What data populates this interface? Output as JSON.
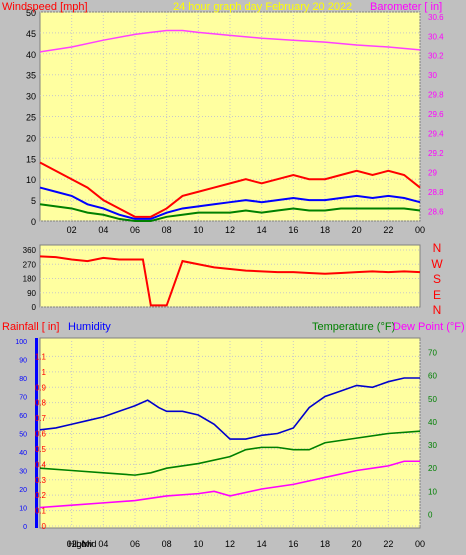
{
  "chart_data": [
    {
      "type": "line",
      "title": "24 hour graph day   February 20 2022",
      "left_axis_label": "Windspeed [mph]",
      "right_axis_label": "Barometer [ in]",
      "x_tick_labels": [
        "02",
        "04",
        "06",
        "08",
        "10",
        "12",
        "14",
        "16",
        "18",
        "20",
        "22",
        "00"
      ],
      "x_range": [
        0,
        24
      ],
      "left_ylim": [
        0,
        50
      ],
      "left_ticks": [
        0,
        5,
        10,
        15,
        20,
        25,
        30,
        35,
        40,
        45,
        50
      ],
      "right_ylim": [
        28.5,
        30.65
      ],
      "right_ticks": [
        28.6,
        28.8,
        29.0,
        29.2,
        29.4,
        29.6,
        29.8,
        30.0,
        30.2,
        30.4,
        30.6
      ],
      "grid": true,
      "series": [
        {
          "axis": "right",
          "color": "#ff40ff",
          "x": [
            0,
            2,
            4,
            6,
            7,
            8,
            9,
            10,
            12,
            14,
            16,
            18,
            20,
            22,
            24
          ],
          "y": [
            30.24,
            30.29,
            30.36,
            30.42,
            30.44,
            30.46,
            30.46,
            30.44,
            30.41,
            30.38,
            30.36,
            30.34,
            30.31,
            30.29,
            30.26
          ]
        },
        {
          "axis": "left",
          "color": "#ff0000",
          "x": [
            0,
            1,
            2,
            3,
            4,
            5,
            6,
            7,
            8,
            9,
            10,
            11,
            12,
            13,
            14,
            15,
            16,
            17,
            18,
            19,
            20,
            21,
            22,
            23,
            24
          ],
          "y": [
            14,
            12,
            10,
            8,
            5,
            3,
            1,
            1,
            3,
            6,
            7,
            8,
            9,
            10,
            9,
            10,
            11,
            10,
            10,
            11,
            12,
            11,
            12,
            11,
            8
          ]
        },
        {
          "axis": "left",
          "color": "#0000ff",
          "x": [
            0,
            1,
            2,
            3,
            4,
            5,
            6,
            7,
            8,
            9,
            10,
            11,
            12,
            13,
            14,
            15,
            16,
            17,
            18,
            19,
            20,
            21,
            22,
            23,
            24
          ],
          "y": [
            8,
            7,
            6,
            4,
            3,
            1.5,
            0.5,
            0.5,
            2,
            3,
            3.5,
            4,
            4.5,
            5,
            4.5,
            5,
            5.5,
            5,
            5,
            5.5,
            6,
            5.5,
            6,
            5.5,
            4.5
          ]
        },
        {
          "axis": "left",
          "color": "#008000",
          "x": [
            0,
            1,
            2,
            3,
            4,
            5,
            6,
            7,
            8,
            9,
            10,
            11,
            12,
            13,
            14,
            15,
            16,
            17,
            18,
            19,
            20,
            21,
            22,
            23,
            24
          ],
          "y": [
            4,
            3.5,
            3,
            2,
            1.5,
            0.5,
            0,
            0,
            1,
            1.5,
            2,
            2,
            2,
            2.5,
            2,
            2.5,
            3,
            2.5,
            2.5,
            3,
            3,
            3,
            3,
            3,
            2.5
          ]
        }
      ]
    },
    {
      "type": "scatter",
      "left_ticks": [
        0,
        90,
        180,
        270,
        360
      ],
      "left_ylim": [
        0,
        360
      ],
      "compass_labels": [
        "N",
        "W",
        "S",
        "E",
        "N"
      ],
      "x_range": [
        0,
        24
      ],
      "grid": true,
      "series": [
        {
          "color": "#ff0000",
          "x": [
            0,
            1,
            2,
            3,
            4,
            5,
            6,
            6.5,
            7,
            8,
            9,
            10,
            11,
            12,
            13,
            14,
            15,
            16,
            17,
            18,
            19,
            20,
            21,
            22,
            23,
            24
          ],
          "y": [
            320,
            315,
            300,
            290,
            310,
            300,
            300,
            300,
            10,
            10,
            290,
            270,
            250,
            240,
            230,
            225,
            220,
            220,
            215,
            210,
            215,
            220,
            225,
            220,
            225,
            220
          ]
        }
      ]
    },
    {
      "type": "line",
      "left_axis_label_1": "Rainfall [ in]",
      "left_axis_label_2": "Humidity",
      "right_axis_label_1": "Temperature (°F)",
      "right_axis_label_2": "Dew Point (°F)",
      "humidity_ticks": [
        0,
        10,
        20,
        30,
        40,
        50,
        60,
        70,
        80,
        90,
        100
      ],
      "rain_ticks": [
        "0",
        "0.1",
        "0.2",
        "0.3",
        "0.4",
        "0.5",
        "0.6",
        "0.7",
        "0.8",
        "0.9",
        "1",
        "1.1"
      ],
      "rain_ylim": [
        0,
        1.2
      ],
      "temp_ticks": [
        0,
        10,
        20,
        30,
        40,
        50,
        60,
        70
      ],
      "temp_ylim": [
        -5,
        75
      ],
      "x_tick_labels": [
        "02",
        "04",
        "06",
        "08",
        "10",
        "12",
        "14",
        "16",
        "18",
        "20",
        "22",
        "00"
      ],
      "bottom_labels": [
        "High",
        "Low",
        "Mid"
      ],
      "x_range": [
        0,
        24
      ],
      "grid": true,
      "series": [
        {
          "axis": "humidity",
          "color": "#0000cc",
          "x": [
            0,
            1,
            2,
            3,
            4,
            5,
            6,
            6.8,
            7.5,
            8,
            9,
            10,
            11,
            12,
            13,
            14,
            15,
            16,
            17,
            18,
            19,
            20,
            21,
            22,
            23,
            24
          ],
          "y": [
            52,
            53,
            55,
            57,
            59,
            62,
            65,
            68,
            64,
            62,
            62,
            60,
            55,
            47,
            47,
            49,
            50,
            53,
            64,
            70,
            73,
            76,
            75,
            78,
            80,
            80
          ]
        },
        {
          "axis": "temp",
          "color": "#008000",
          "x": [
            0,
            2,
            4,
            6,
            7,
            8,
            10,
            12,
            13,
            14,
            15,
            16,
            17,
            18,
            20,
            22,
            24
          ],
          "y": [
            20,
            19,
            18,
            17,
            18,
            20,
            22,
            25,
            28,
            29,
            29,
            28,
            28,
            31,
            33,
            35,
            36
          ]
        },
        {
          "axis": "temp",
          "color": "#ff00ff",
          "x": [
            0,
            2,
            4,
            6,
            8,
            10,
            11,
            12,
            14,
            16,
            18,
            20,
            22,
            23,
            24
          ],
          "y": [
            3,
            4,
            5,
            6,
            8,
            9,
            10,
            8,
            11,
            13,
            16,
            19,
            21,
            23,
            23
          ]
        }
      ]
    }
  ]
}
